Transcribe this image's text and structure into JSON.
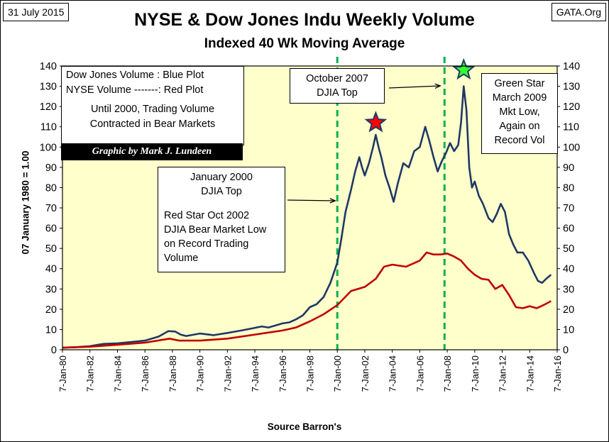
{
  "header": {
    "date": "31 July 2015",
    "site": "GATA.Org",
    "title": "NYSE & Dow Jones Indu Weekly Volume",
    "subtitle": "Indexed 40 Wk Moving Average"
  },
  "legend": {
    "line1": "Dow Jones Volume : Blue Plot",
    "line2": "NYSE Volume -------: Red Plot",
    "line3": "Until 2000, Trading Volume",
    "line4": "Contracted in Bear Markets",
    "credit": "Graphic by Mark J. Lundeen"
  },
  "annotations": {
    "oct2007_l1": "October 2007",
    "oct2007_l2": "DJIA Top",
    "jan2000_l1": "January 2000",
    "jan2000_l2": "DJIA Top",
    "red_star_l1": "Red Star Oct 2002",
    "red_star_l2": "DJIA Bear Market Low",
    "red_star_l3": "on Record Trading",
    "red_star_l4": "Volume",
    "green_star_l1": "Green Star",
    "green_star_l2": "March 2009",
    "green_star_l3": "Mkt Low,",
    "green_star_l4": "Again on",
    "green_star_l5": "Record Vol"
  },
  "colors": {
    "plot_background": "#FFFFCC",
    "dow_line": "#1F3864",
    "nyse_line": "#C00000",
    "marker_lines": "#00B050",
    "red_star": "#FF0000",
    "green_star": "#33FF33"
  },
  "chart_data": {
    "type": "line",
    "title": "NYSE & Dow Jones Indu Weekly Volume",
    "subtitle": "Indexed 40 Wk Moving Average",
    "xlabel": "Source Barron's",
    "ylabel": "07 January 1980 = 1.00",
    "ylim": [
      0,
      140
    ],
    "y_ticks": [
      0,
      10,
      20,
      30,
      40,
      50,
      60,
      70,
      80,
      90,
      100,
      110,
      120,
      130,
      140
    ],
    "xlim": [
      1980.0,
      2016.0
    ],
    "x_ticks": [
      "7-Jan-80",
      "7-Jan-82",
      "7-Jan-84",
      "7-Jan-86",
      "7-Jan-88",
      "7-Jan-90",
      "7-Jan-92",
      "7-Jan-94",
      "7-Jan-96",
      "7-Jan-98",
      "7-Jan-00",
      "7-Jan-02",
      "7-Jan-04",
      "7-Jan-06",
      "7-Jan-08",
      "7-Jan-10",
      "7-Jan-12",
      "7-Jan-14",
      "7-Jan-16"
    ],
    "vertical_markers": [
      2000.0,
      2007.8
    ],
    "stars": [
      {
        "name": "Red Star Oct 2002",
        "x": 2002.8,
        "y": 112,
        "color": "#FF0000"
      },
      {
        "name": "Green Star March 2009",
        "x": 2009.2,
        "y": 138,
        "color": "#33FF33"
      }
    ],
    "series": [
      {
        "name": "Dow Jones Volume",
        "color": "#1F3864",
        "x": [
          1980.0,
          1981.0,
          1982.0,
          1982.6,
          1983.0,
          1984.0,
          1985.0,
          1986.0,
          1987.0,
          1987.7,
          1988.2,
          1988.6,
          1989.0,
          1990.0,
          1991.0,
          1992.0,
          1993.0,
          1994.0,
          1994.5,
          1995.0,
          1995.5,
          1996.0,
          1996.5,
          1997.0,
          1997.5,
          1998.0,
          1998.5,
          1999.0,
          1999.5,
          2000.0,
          2000.3,
          2000.6,
          2001.0,
          2001.3,
          2001.6,
          2001.8,
          2002.0,
          2002.3,
          2002.6,
          2002.8,
          2003.0,
          2003.2,
          2003.5,
          2003.8,
          2004.1,
          2004.4,
          2004.8,
          2005.2,
          2005.6,
          2006.0,
          2006.4,
          2006.7,
          2007.0,
          2007.3,
          2007.6,
          2007.9,
          2008.2,
          2008.5,
          2008.8,
          2009.0,
          2009.2,
          2009.4,
          2009.6,
          2009.8,
          2010.0,
          2010.3,
          2010.6,
          2011.0,
          2011.3,
          2011.6,
          2011.9,
          2012.2,
          2012.5,
          2012.8,
          2013.1,
          2013.5,
          2013.9,
          2014.3,
          2014.6,
          2014.9,
          2015.2,
          2015.55
        ],
        "values": [
          1,
          1.3,
          1.8,
          2.5,
          2.9,
          3.2,
          3.8,
          4.5,
          6.5,
          9.2,
          9.0,
          7.5,
          6.8,
          8.0,
          7.2,
          8.3,
          9.5,
          10.8,
          11.5,
          11.0,
          12.0,
          13.0,
          13.5,
          15.0,
          17.0,
          21.0,
          22.5,
          26.0,
          33.0,
          43.0,
          55.0,
          68.0,
          79.0,
          88.0,
          95.0,
          90.0,
          86.0,
          92.0,
          100.0,
          106.0,
          100.0,
          95.0,
          86.0,
          80.0,
          73.0,
          82.0,
          92.0,
          90.0,
          98.0,
          100.0,
          110.0,
          103.0,
          95.0,
          88.0,
          93.0,
          97.0,
          102.0,
          98.0,
          101.0,
          112.0,
          130.0,
          118.0,
          90.0,
          80.0,
          83.0,
          76.0,
          72.0,
          65.0,
          63.0,
          67.0,
          72.0,
          68.0,
          57.0,
          52.0,
          48.0,
          48.0,
          44.0,
          38.0,
          34.0,
          33.0,
          35.0,
          37.0
        ]
      },
      {
        "name": "NYSE Volume",
        "color": "#C00000",
        "x": [
          1980.0,
          1982.0,
          1984.0,
          1986.0,
          1987.8,
          1988.5,
          1990.0,
          1992.0,
          1994.0,
          1995.0,
          1996.0,
          1997.0,
          1998.0,
          1999.0,
          2000.0,
          2001.0,
          2002.0,
          2002.8,
          2003.4,
          2004.0,
          2005.0,
          2006.0,
          2006.5,
          2007.0,
          2007.5,
          2008.0,
          2008.5,
          2009.0,
          2009.5,
          2010.0,
          2010.5,
          2011.0,
          2011.5,
          2012.0,
          2012.5,
          2013.0,
          2013.5,
          2014.0,
          2014.5,
          2015.0,
          2015.55
        ],
        "values": [
          1,
          1.5,
          2.5,
          3.5,
          5.5,
          4.5,
          4.5,
          5.5,
          7.5,
          8.5,
          9.5,
          11.0,
          14.0,
          17.5,
          22.0,
          29.0,
          31.0,
          35.0,
          41.0,
          42.0,
          41.0,
          44.0,
          48.0,
          47.0,
          47.0,
          47.5,
          46.0,
          44.0,
          40.0,
          37.0,
          35.0,
          34.5,
          30.0,
          32.0,
          27.0,
          21.0,
          20.5,
          21.5,
          20.5,
          22.0,
          24.0
        ]
      }
    ]
  }
}
